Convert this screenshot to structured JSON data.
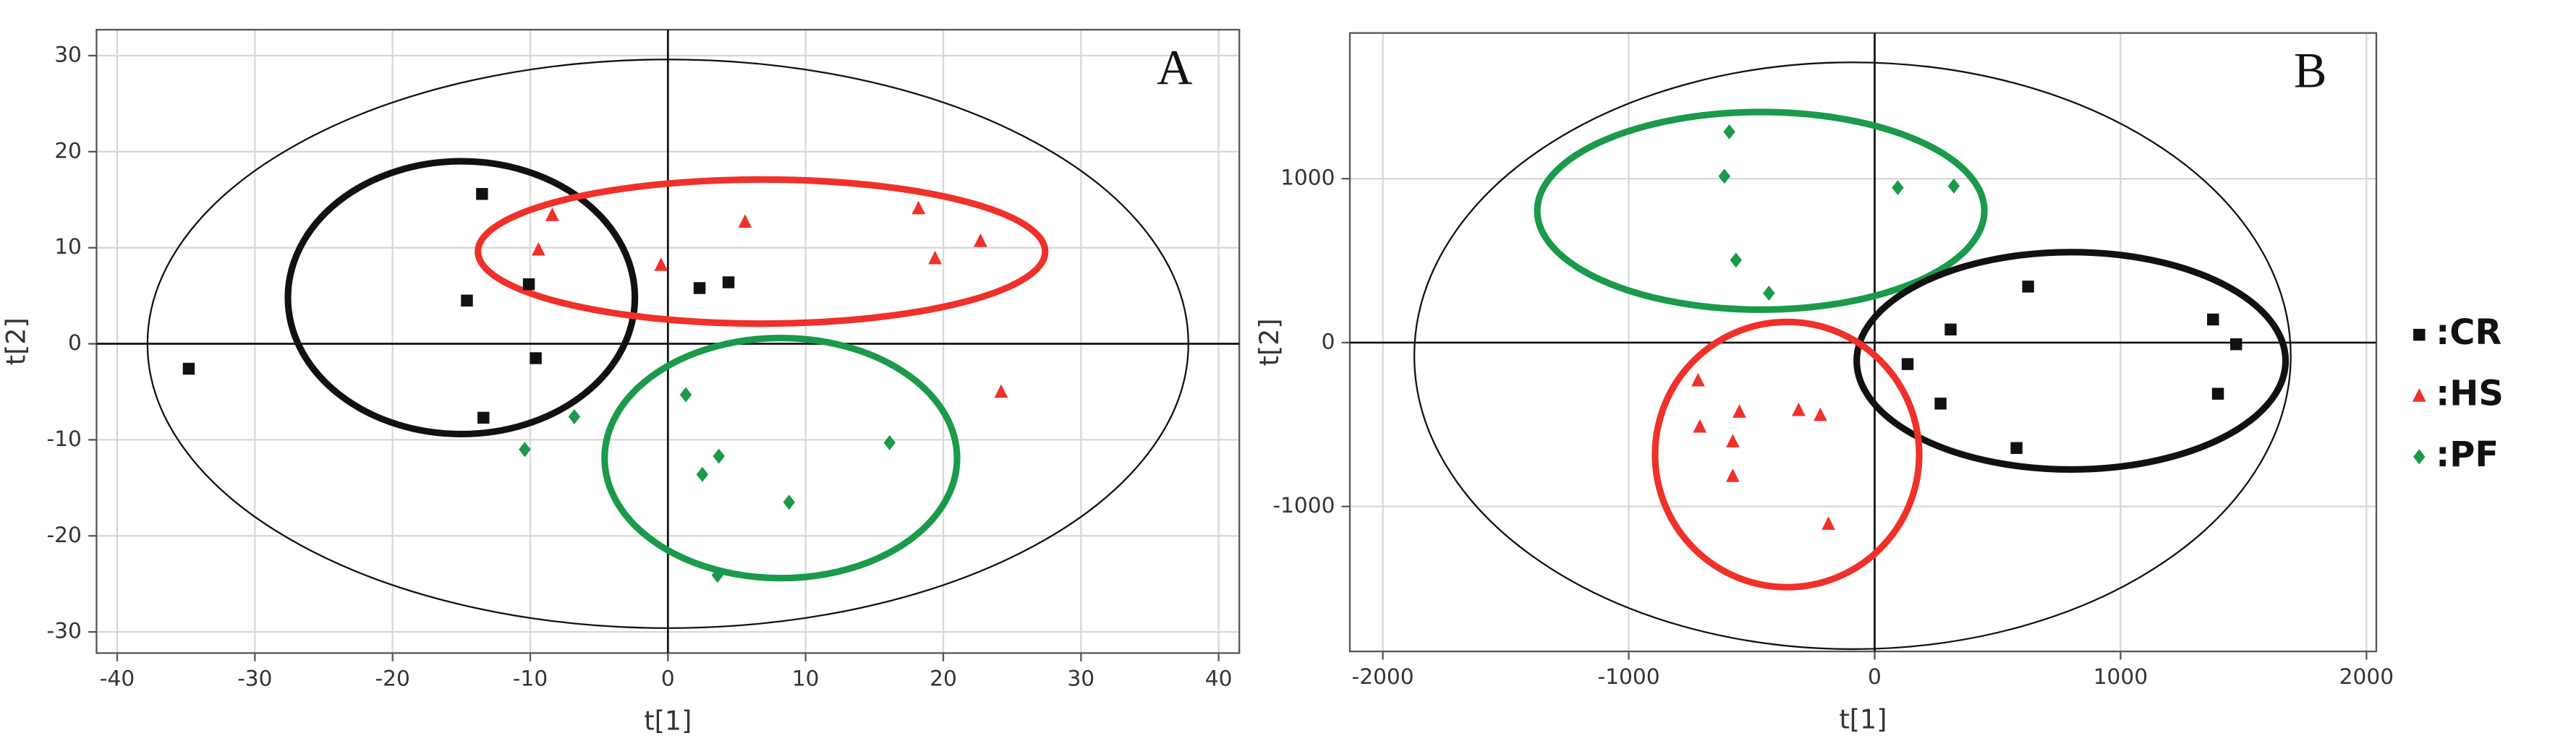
{
  "chart_data": [
    {
      "type": "scatter",
      "panel_label": "A",
      "xlabel": "t[1]",
      "ylabel": "t[2]",
      "xlim": [
        -41.5,
        41.5
      ],
      "ylim": [
        -32.2,
        32.7
      ],
      "xticks": [
        -40,
        -30,
        -20,
        -10,
        0,
        10,
        20,
        30,
        40
      ],
      "yticks": [
        -30,
        -20,
        -10,
        0,
        10,
        20,
        30
      ],
      "grid": true,
      "series": [
        {
          "color": "#111111",
          "marker": "square",
          "x": [
            -13.5,
            -14.6,
            -10.1,
            -9.6,
            -13.4,
            -34.8,
            2.3,
            4.4
          ],
          "values": [
            15.6,
            4.5,
            6.2,
            -1.5,
            -7.7,
            -2.6,
            5.8,
            6.4
          ]
        },
        {
          "color": "#f0302a",
          "marker": "triangle",
          "x": [
            -8.4,
            -9.4,
            -0.5,
            5.6,
            18.2,
            19.4,
            22.7,
            24.2
          ],
          "values": [
            13.4,
            9.8,
            8.2,
            12.7,
            14.1,
            8.9,
            10.7,
            -5.0
          ]
        },
        {
          "color": "#1a9a4a",
          "marker": "diamond",
          "x": [
            -10.4,
            -6.8,
            1.3,
            3.7,
            2.5,
            8.8,
            16.1,
            3.6
          ],
          "values": [
            -11.0,
            -7.6,
            -5.3,
            -11.7,
            -13.6,
            -16.5,
            -10.3,
            -24.1
          ]
        }
      ],
      "ellipses": [
        {
          "color": "#111111",
          "line_width": 1,
          "cx": 0,
          "cy": 0,
          "rx": 37.8,
          "ry": 29.6
        },
        {
          "color": "#111111",
          "line_width": 4,
          "cx": -15,
          "cy": 4.8,
          "rx": 12.6,
          "ry": 14.2
        },
        {
          "color": "#f0302a",
          "line_width": 4,
          "cx": 6.8,
          "cy": 9.6,
          "rx": 20.6,
          "ry": 7.5
        },
        {
          "color": "#1a9a4a",
          "line_width": 4,
          "cx": 8.2,
          "cy": -11.9,
          "rx": 12.8,
          "ry": 12.5
        }
      ]
    },
    {
      "type": "scatter",
      "panel_label": "B",
      "xlabel": "t[1]",
      "ylabel": "t[2]",
      "xlim": [
        -2134,
        2040
      ],
      "ylim": [
        -1884,
        1889
      ],
      "xticks": [
        -2000,
        -1000,
        0,
        1000,
        2000
      ],
      "yticks": [
        -1000,
        0,
        1000
      ],
      "grid": true,
      "series": [
        {
          "name": ":CR",
          "color": "#111111",
          "marker": "square",
          "x": [
            309,
            624,
            134,
            268,
            577,
            1376,
            1396,
            1470
          ],
          "values": [
            80,
            342,
            -131,
            -372,
            -643,
            141,
            -312,
            -10
          ]
        },
        {
          "name": ":HS",
          "color": "#f0302a",
          "marker": "triangle",
          "x": [
            -718,
            -711,
            -550,
            -577,
            -577,
            -309,
            -221,
            -188
          ],
          "values": [
            -231,
            -513,
            -422,
            -603,
            -814,
            -412,
            -442,
            -1106
          ]
        },
        {
          "name": ":PF",
          "color": "#1a9a4a",
          "marker": "diamond",
          "x": [
            -591,
            -611,
            -564,
            -430,
            94,
            322
          ],
          "values": [
            1286,
            1015,
            503,
            302,
            945,
            955
          ]
        }
      ],
      "ellipses": [
        {
          "color": "#111111",
          "line_width": 1,
          "cx": -90,
          "cy": -80,
          "rx": 1782,
          "ry": 1790
        },
        {
          "color": "#1a9a4a",
          "line_width": 4,
          "cx": -463,
          "cy": 804,
          "rx": 909,
          "ry": 603
        },
        {
          "color": "#111111",
          "line_width": 4,
          "cx": 799,
          "cy": -111,
          "rx": 872,
          "ry": 663
        },
        {
          "color": "#f0302a",
          "line_width": 4,
          "cx": -356,
          "cy": -683,
          "rx": 537,
          "ry": 809
        }
      ]
    }
  ]
}
